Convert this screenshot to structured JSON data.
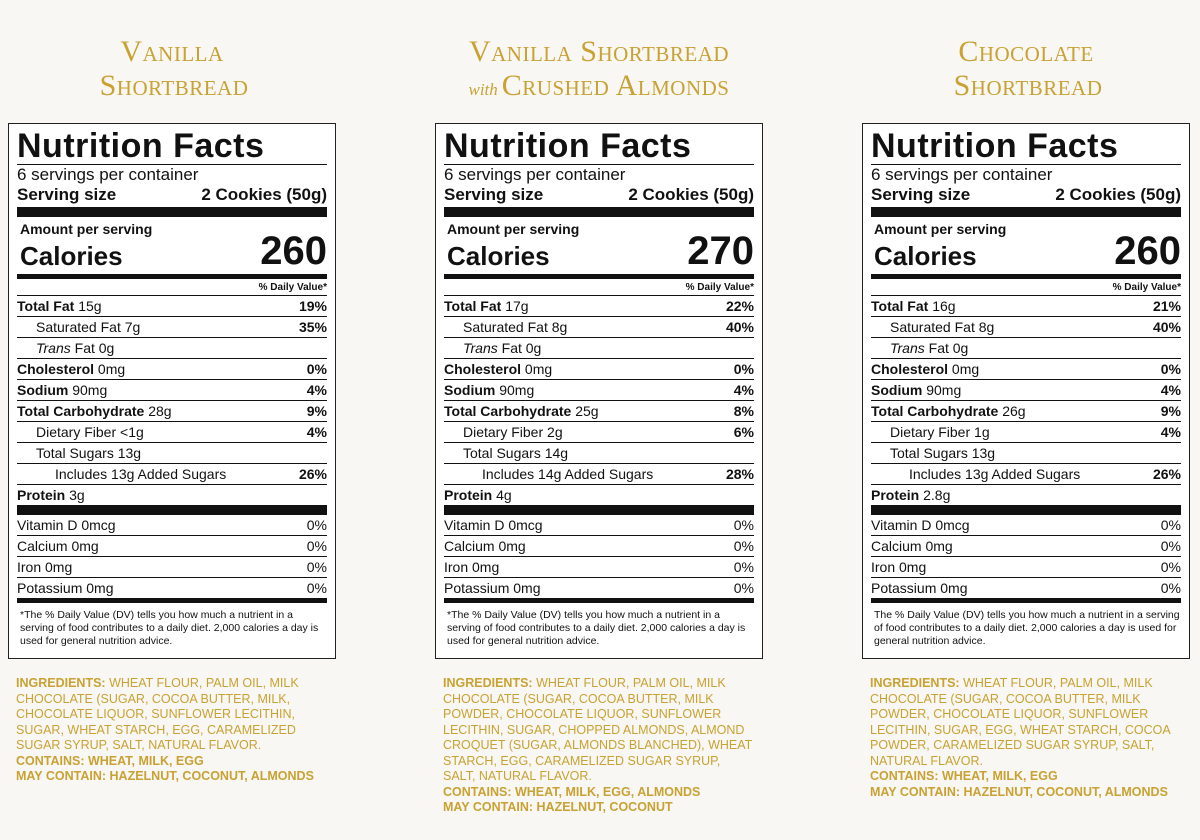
{
  "products": [
    {
      "title_line1": "Vanilla",
      "title_with": "",
      "title_line2": "Shortbread",
      "label": {
        "heading": "Nutrition Facts",
        "servings": "6 servings per container",
        "serving_size_label": "Serving size",
        "serving_size_value": "2 Cookies (50g)",
        "amount_per_serving": "Amount per serving",
        "calories_label": "Calories",
        "calories": "260",
        "dv_header": "% Daily Value*",
        "rows": [
          {
            "name": "Total Fat",
            "amount": "15g",
            "pct": "19%"
          },
          {
            "name": "Saturated Fat",
            "amount": "7g",
            "pct": "35%"
          },
          {
            "name": "Trans",
            "amount": "Fat 0g",
            "pct": ""
          },
          {
            "name": "Cholesterol",
            "amount": "0mg",
            "pct": "0%"
          },
          {
            "name": "Sodium",
            "amount": "90mg",
            "pct": "4%"
          },
          {
            "name": "Total Carbohydrate",
            "amount": "28g",
            "pct": "9%"
          },
          {
            "name": "Dietary Fiber",
            "amount": "<1g",
            "pct": "4%"
          },
          {
            "name": "Total Sugars",
            "amount": "13g",
            "pct": ""
          },
          {
            "name": "Includes 13g Added Sugars",
            "amount": "",
            "pct": "26%"
          },
          {
            "name": "Protein",
            "amount": "3g",
            "pct": ""
          }
        ],
        "vitamins": [
          {
            "name": "Vitamin D 0mcg",
            "pct": "0%"
          },
          {
            "name": "Calcium 0mg",
            "pct": "0%"
          },
          {
            "name": "Iron 0mg",
            "pct": "0%"
          },
          {
            "name": "Potassium 0mg",
            "pct": "0%"
          }
        ],
        "footnote": "*The % Daily Value (DV) tells you how much a nutrient in a serving of food contributes to a daily diet. 2,000 calories a day is used for general nutrition advice."
      },
      "ingredients_label": "Ingredients:",
      "ingredients_text": "Wheat flour, palm oil, milk chocolate (sugar, cocoa butter, milk, chocolate liquor, sunflower lecithin, sugar, wheat starch, egg, caramelized sugar syrup, salt, natural flavor.",
      "contains": "Contains: Wheat, Milk, Egg",
      "may_contain": "May Contain: Hazelnut, Coconut, Almonds"
    },
    {
      "title_line1": "Vanilla Shortbread",
      "title_with": "with",
      "title_line2": "Crushed Almonds",
      "label": {
        "heading": "Nutrition Facts",
        "servings": "6 servings per container",
        "serving_size_label": "Serving size",
        "serving_size_value": "2 Cookies (50g)",
        "amount_per_serving": "Amount per serving",
        "calories_label": "Calories",
        "calories": "270",
        "dv_header": "% Daily Value*",
        "rows": [
          {
            "name": "Total Fat",
            "amount": "17g",
            "pct": "22%"
          },
          {
            "name": "Saturated Fat",
            "amount": "8g",
            "pct": "40%"
          },
          {
            "name": "Trans",
            "amount": "Fat 0g",
            "pct": ""
          },
          {
            "name": "Cholesterol",
            "amount": "0mg",
            "pct": "0%"
          },
          {
            "name": "Sodium",
            "amount": "90mg",
            "pct": "4%"
          },
          {
            "name": "Total Carbohydrate",
            "amount": "25g",
            "pct": "8%"
          },
          {
            "name": "Dietary Fiber",
            "amount": "2g",
            "pct": "6%"
          },
          {
            "name": "Total Sugars",
            "amount": "14g",
            "pct": ""
          },
          {
            "name": "Includes 14g Added Sugars",
            "amount": "",
            "pct": "28%"
          },
          {
            "name": "Protein",
            "amount": "4g",
            "pct": ""
          }
        ],
        "vitamins": [
          {
            "name": "Vitamin D 0mcg",
            "pct": "0%"
          },
          {
            "name": "Calcium 0mg",
            "pct": "0%"
          },
          {
            "name": "Iron 0mg",
            "pct": "0%"
          },
          {
            "name": "Potassium 0mg",
            "pct": "0%"
          }
        ],
        "footnote": "*The % Daily Value (DV) tells you how much a nutrient in a serving of food contributes to a daily diet. 2,000 calories a day is used for general nutrition advice."
      },
      "ingredients_label": "Ingredients:",
      "ingredients_text": "Wheat flour, palm oil, milk chocolate (sugar, cocoa butter, milk powder, chocolate liquor, sunflower lecithin, sugar, chopped almonds, almond croquet (sugar, almonds blanched), wheat starch, egg, caramelized sugar syrup, salt, natural flavor.",
      "contains": "Contains: Wheat, Milk, Egg, Almonds",
      "may_contain": "May Contain: Hazelnut, Coconut"
    },
    {
      "title_line1": "Chocolate",
      "title_with": "",
      "title_line2": "Shortbread",
      "label": {
        "heading": "Nutrition Facts",
        "servings": "6 servings per container",
        "serving_size_label": "Serving size",
        "serving_size_value": "2 Cookies (50g)",
        "amount_per_serving": "Amount per serving",
        "calories_label": "Calories",
        "calories": "260",
        "dv_header": "% Daily Value*",
        "rows": [
          {
            "name": "Total Fat",
            "amount": "16g",
            "pct": "21%"
          },
          {
            "name": "Saturated Fat",
            "amount": "8g",
            "pct": "40%"
          },
          {
            "name": "Trans",
            "amount": "Fat 0g",
            "pct": ""
          },
          {
            "name": "Cholesterol",
            "amount": "0mg",
            "pct": "0%"
          },
          {
            "name": "Sodium",
            "amount": "90mg",
            "pct": "4%"
          },
          {
            "name": "Total Carbohydrate",
            "amount": "26g",
            "pct": "9%"
          },
          {
            "name": "Dietary Fiber",
            "amount": "1g",
            "pct": "4%"
          },
          {
            "name": "Total Sugars",
            "amount": "13g",
            "pct": ""
          },
          {
            "name": "Includes 13g Added Sugars",
            "amount": "",
            "pct": "26%"
          },
          {
            "name": "Protein",
            "amount": "2.8g",
            "pct": ""
          }
        ],
        "vitamins": [
          {
            "name": "Vitamin D 0mcg",
            "pct": "0%"
          },
          {
            "name": "Calcium 0mg",
            "pct": "0%"
          },
          {
            "name": "Iron 0mg",
            "pct": "0%"
          },
          {
            "name": "Potassium 0mg",
            "pct": "0%"
          }
        ],
        "footnote": "The % Daily Value (DV) tells you how much a nutrient in a serving of food contributes to a daily diet. 2,000 calories a day is used for general nutrition advice."
      },
      "ingredients_label": "Ingredients:",
      "ingredients_text": "Wheat flour, palm oil, milk chocolate (sugar, cocoa butter, milk powder, chocolate liquor, sunflower lecithin, sugar, egg, wheat starch, cocoa powder, caramelized sugar syrup, salt, natural flavor.",
      "contains": "Contains: Wheat, Milk, Egg",
      "may_contain": "May Contain: Hazelnut, Coconut, Almonds"
    }
  ],
  "colors": {
    "accent_gold": "#c9a233",
    "background": "#f8f7f3",
    "ink": "#111111"
  }
}
